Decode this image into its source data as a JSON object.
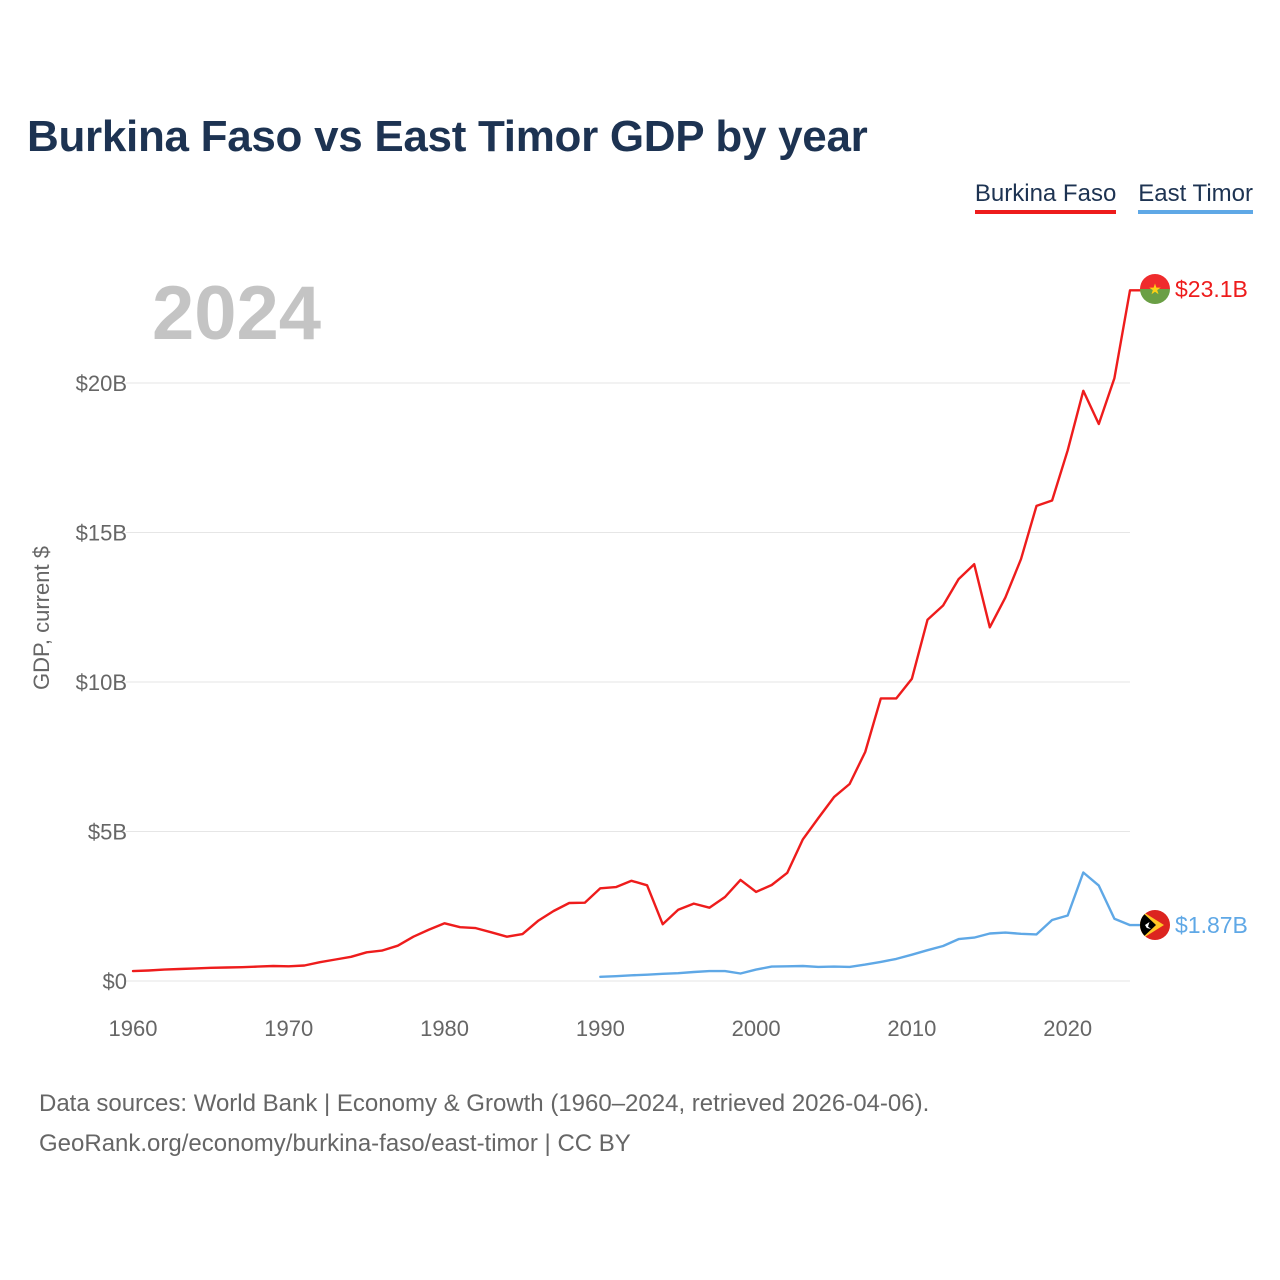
{
  "title": "Burkina Faso vs East Timor GDP by year",
  "current_year": "2024",
  "y_axis_title": "GDP, current $",
  "source_line_1": "Data sources: World Bank | Economy & Growth (1960–2024, retrieved 2026-04-06).",
  "source_line_2": "GeoRank.org/economy/burkina-faso/east-timor | CC BY",
  "colors": {
    "burkina": "#ee1c1c",
    "timor": "#5fa8e6",
    "grid": "#e6e6e6",
    "axis_text": "#666666"
  },
  "chart_data": {
    "type": "line",
    "title": "Burkina Faso vs East Timor GDP by year",
    "xlabel": "",
    "ylabel": "GDP, current $",
    "xlim": [
      1960,
      2024
    ],
    "ylim": [
      0,
      23.5
    ],
    "x_ticks": [
      1960,
      1970,
      1980,
      1990,
      2000,
      2010,
      2020
    ],
    "x_tick_labels": [
      "1960",
      "1970",
      "1980",
      "1990",
      "2000",
      "2010",
      "2020"
    ],
    "y_ticks": [
      0,
      5,
      10,
      15,
      20
    ],
    "y_tick_labels": [
      "$0",
      "$5B",
      "$10B",
      "$15B",
      "$20B"
    ],
    "legend_position": "top-right",
    "series": [
      {
        "name": "Burkina Faso",
        "color": "#ee1c1c",
        "end_label": "$23.1B",
        "x": [
          1960,
          1961,
          1962,
          1963,
          1964,
          1965,
          1966,
          1967,
          1968,
          1969,
          1970,
          1971,
          1972,
          1973,
          1974,
          1975,
          1976,
          1977,
          1978,
          1979,
          1980,
          1981,
          1982,
          1983,
          1984,
          1985,
          1986,
          1987,
          1988,
          1989,
          1990,
          1991,
          1992,
          1993,
          1994,
          1995,
          1996,
          1997,
          1998,
          1999,
          2000,
          2001,
          2002,
          2003,
          2004,
          2005,
          2006,
          2007,
          2008,
          2009,
          2010,
          2011,
          2012,
          2013,
          2014,
          2015,
          2016,
          2017,
          2018,
          2019,
          2020,
          2021,
          2022,
          2023,
          2024
        ],
        "values": [
          0.33,
          0.35,
          0.38,
          0.4,
          0.42,
          0.44,
          0.45,
          0.46,
          0.48,
          0.5,
          0.49,
          0.52,
          0.63,
          0.72,
          0.81,
          0.96,
          1.02,
          1.18,
          1.48,
          1.72,
          1.93,
          1.8,
          1.77,
          1.63,
          1.48,
          1.57,
          2.01,
          2.34,
          2.61,
          2.62,
          3.1,
          3.14,
          3.35,
          3.2,
          1.9,
          2.38,
          2.59,
          2.45,
          2.81,
          3.38,
          2.98,
          3.21,
          3.62,
          4.74,
          5.45,
          6.15,
          6.59,
          7.66,
          9.45,
          9.45,
          10.11,
          12.08,
          12.56,
          13.44,
          13.94,
          11.83,
          12.83,
          14.11,
          15.89,
          16.07,
          17.75,
          19.74,
          18.63,
          20.16,
          23.1
        ]
      },
      {
        "name": "East Timor",
        "color": "#5fa8e6",
        "end_label": "$1.87B",
        "x": [
          1990,
          1991,
          1992,
          1993,
          1994,
          1995,
          1996,
          1997,
          1998,
          1999,
          2000,
          2001,
          2002,
          2003,
          2004,
          2005,
          2006,
          2007,
          2008,
          2009,
          2010,
          2011,
          2012,
          2013,
          2014,
          2015,
          2016,
          2017,
          2018,
          2019,
          2020,
          2021,
          2022,
          2023,
          2024
        ],
        "values": [
          0.14,
          0.16,
          0.19,
          0.21,
          0.24,
          0.26,
          0.3,
          0.33,
          0.33,
          0.25,
          0.38,
          0.48,
          0.49,
          0.5,
          0.47,
          0.48,
          0.47,
          0.55,
          0.64,
          0.74,
          0.88,
          1.03,
          1.17,
          1.4,
          1.45,
          1.59,
          1.62,
          1.58,
          1.56,
          2.04,
          2.19,
          3.63,
          3.19,
          2.08,
          1.87
        ]
      }
    ]
  },
  "legend": [
    {
      "label": "Burkina Faso",
      "color": "#ee1c1c"
    },
    {
      "label": "East Timor",
      "color": "#5fa8e6"
    }
  ],
  "flags": {
    "burkina": "burkina-faso-flag-icon",
    "timor": "east-timor-flag-icon"
  }
}
